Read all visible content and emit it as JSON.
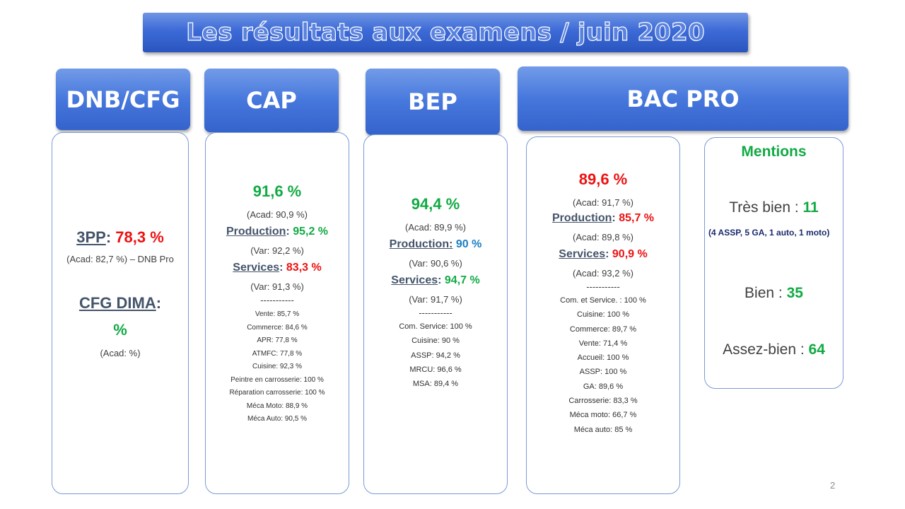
{
  "title": "Les résultats aux examens / juin 2020",
  "page_number": "2",
  "headers": {
    "dnb": "DNB/CFG",
    "cap": "CAP",
    "bep": "BEP",
    "bac": "BAC PRO"
  },
  "dnb": {
    "pp_label": "3PP",
    "pp_sep": ":",
    "pp_value": "78,3 %",
    "pp_acad": "(Acad: 82,7 %) – DNB Pro",
    "cfg_label": "CFG DIMA",
    "cfg_sep": ":",
    "cfg_value": "%",
    "cfg_acad": "(Acad: %)"
  },
  "cap": {
    "total": "91,6 %",
    "total_acad": "(Acad: 90,9 %)",
    "production_label": "Production",
    "production_sep": ":",
    "production_value": "95,2 %",
    "production_var": "(Var: 92,2 %)",
    "services_label": "Services",
    "services_sep": ":",
    "services_value": "83,3 %",
    "services_var": "(Var: 91,3 %)",
    "separator": "-----------",
    "details": [
      "Vente: 85,7 %",
      "Commerce: 84,6 %",
      "APR: 77,8 %",
      "ATMFC: 77,8 %",
      "Cuisine: 92,3 %",
      "Peintre en carrosserie: 100 %",
      "Réparation carrosserie: 100 %",
      "Méca Moto: 88,9 %",
      "Méca Auto: 90,5 %"
    ]
  },
  "bep": {
    "total": "94,4 %",
    "total_acad": "(Acad: 89,9 %)",
    "production_label": "Production:",
    "production_value": "90 %",
    "production_var": "(Var: 90,6 %)",
    "services_label": "Services",
    "services_sep": ":",
    "services_value": "94,7 %",
    "services_var": "(Var: 91,7 %)",
    "separator": "-----------",
    "details": [
      "Com. Service: 100 %",
      "Cuisine: 90 %",
      "ASSP: 94,2 %",
      "MRCU: 96,6 %",
      "MSA: 89,4 %"
    ]
  },
  "bac": {
    "total": "89,6 %",
    "total_acad": "(Acad: 91,7 %)",
    "production_label": "Production",
    "production_sep": ":",
    "production_value": "85,7 %",
    "production_acad": "(Acad: 89,8 %)",
    "services_label": "Services",
    "services_sep": ":",
    "services_value": "90,9 %",
    "services_acad": "(Acad: 93,2 %)",
    "separator": "-----------",
    "details": [
      "Com. et Service. : 100 %",
      "Cuisine: 100 %",
      "Commerce: 89,7 %",
      "Vente: 71,4 %",
      "Accueil: 100 %",
      "ASSP: 100 %",
      "GA: 89,6 %",
      "Carrosserie: 83,3 %",
      "Méca moto: 66,7 %",
      "Méca auto: 85 %"
    ]
  },
  "mentions": {
    "title": "Mentions",
    "tres_bien_label": "Très bien :",
    "tres_bien_value": "11",
    "tres_bien_detail": "(4 ASSP, 5 GA, 1 auto, 1 moto)",
    "bien_label": "Bien :",
    "bien_value": "35",
    "assez_bien_label": "Assez-bien :",
    "assez_bien_value": "64"
  },
  "colors": {
    "red": "#ee1111",
    "green": "#11aa44",
    "blue": "#1a7ec4",
    "header_blue": "#4677dc",
    "border": "#7a9bd6"
  }
}
